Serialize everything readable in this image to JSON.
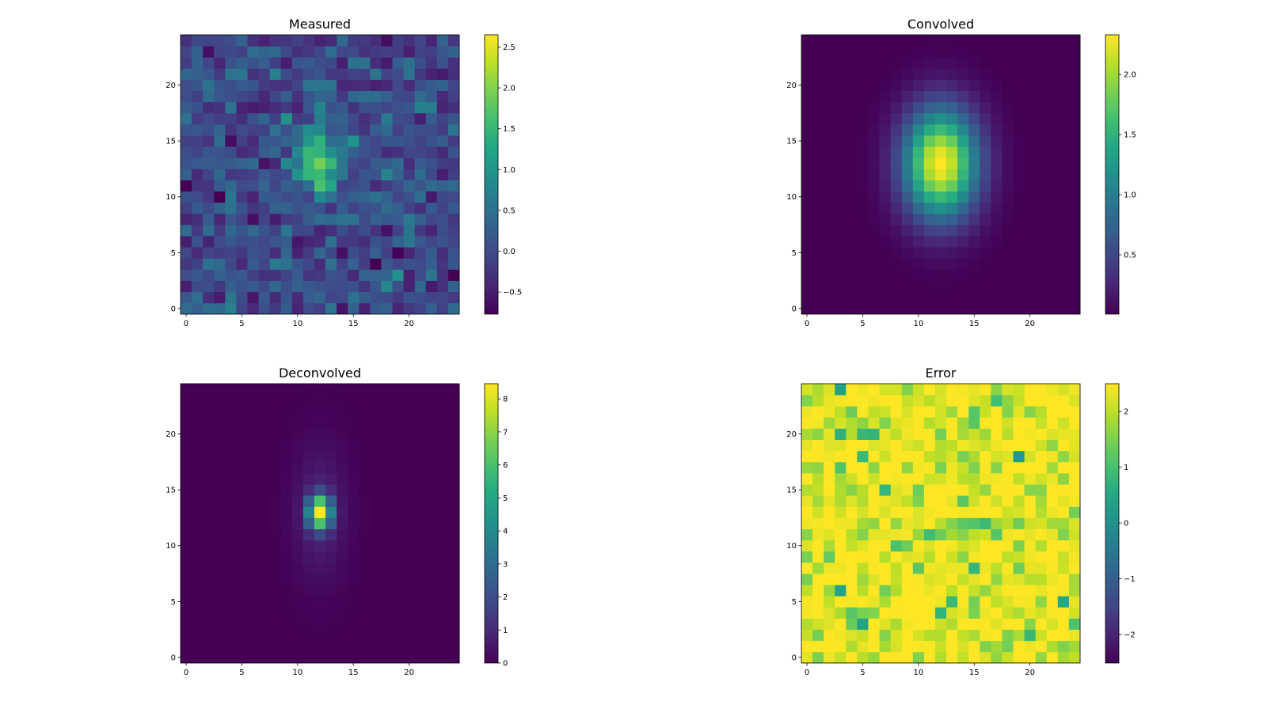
{
  "chart_data": [
    {
      "type": "heatmap",
      "title": "Measured",
      "grid_size": [
        25,
        25
      ],
      "xticks": [
        0,
        5,
        10,
        15,
        20
      ],
      "yticks": [
        0,
        5,
        10,
        15,
        20
      ],
      "colormap": "viridis",
      "clim": [
        -0.77,
        2.65
      ],
      "colorbar_ticks": [
        "−0.5",
        "0.0",
        "0.5",
        "1.0",
        "1.5",
        "2.0",
        "2.5"
      ],
      "colorbar_tick_values": [
        -0.5,
        0,
        0.5,
        1,
        1.5,
        2,
        2.5
      ],
      "model": {
        "kind": "gaussian_plus_noise",
        "center": [
          12,
          13
        ],
        "amplitude": 2.3,
        "sigma": [
          1.2,
          1.8
        ],
        "noise_std": 0.3,
        "seed": 7
      }
    },
    {
      "type": "heatmap",
      "title": "Convolved",
      "grid_size": [
        25,
        25
      ],
      "xticks": [
        0,
        5,
        10,
        15,
        20
      ],
      "yticks": [
        0,
        5,
        10,
        15,
        20
      ],
      "colormap": "viridis",
      "clim": [
        0.007,
        2.33
      ],
      "colorbar_ticks": [
        "0.5",
        "1.0",
        "1.5",
        "2.0"
      ],
      "colorbar_tick_values": [
        0.5,
        1.0,
        1.5,
        2.0
      ],
      "model": {
        "kind": "gaussian",
        "center": [
          12,
          13
        ],
        "amplitude": 2.33,
        "sigma": [
          2.3,
          3.4
        ]
      }
    },
    {
      "type": "heatmap",
      "title": "Deconvolved",
      "grid_size": [
        25,
        25
      ],
      "xticks": [
        0,
        5,
        10,
        15,
        20
      ],
      "yticks": [
        0,
        5,
        10,
        15,
        20
      ],
      "colormap": "viridis",
      "clim": [
        0,
        8.46
      ],
      "colorbar_ticks": [
        "0",
        "1",
        "2",
        "3",
        "4",
        "5",
        "6",
        "7",
        "8"
      ],
      "colorbar_tick_values": [
        0,
        1,
        2,
        3,
        4,
        5,
        6,
        7,
        8
      ],
      "model": {
        "kind": "gaussian",
        "center": [
          12,
          13
        ],
        "amplitude": 8.46,
        "sigma": [
          0.7,
          1.0
        ],
        "tail_amplitude": 0.9,
        "tail_sigma": [
          1.6,
          4.0
        ]
      }
    },
    {
      "type": "heatmap",
      "title": "Error",
      "grid_size": [
        25,
        25
      ],
      "xticks": [
        0,
        5,
        10,
        15,
        20
      ],
      "yticks": [
        0,
        5,
        10,
        15,
        20
      ],
      "colormap": "viridis",
      "clim": [
        -2.51,
        2.5
      ],
      "colorbar_ticks": [
        "−2",
        "−1",
        "0",
        "1",
        "2"
      ],
      "colorbar_tick_values": [
        -2,
        -1,
        0,
        1,
        2
      ],
      "model": {
        "kind": "saturated_noise",
        "ceiling": 2.5,
        "noise_std": 0.8,
        "seed": 21
      }
    }
  ]
}
